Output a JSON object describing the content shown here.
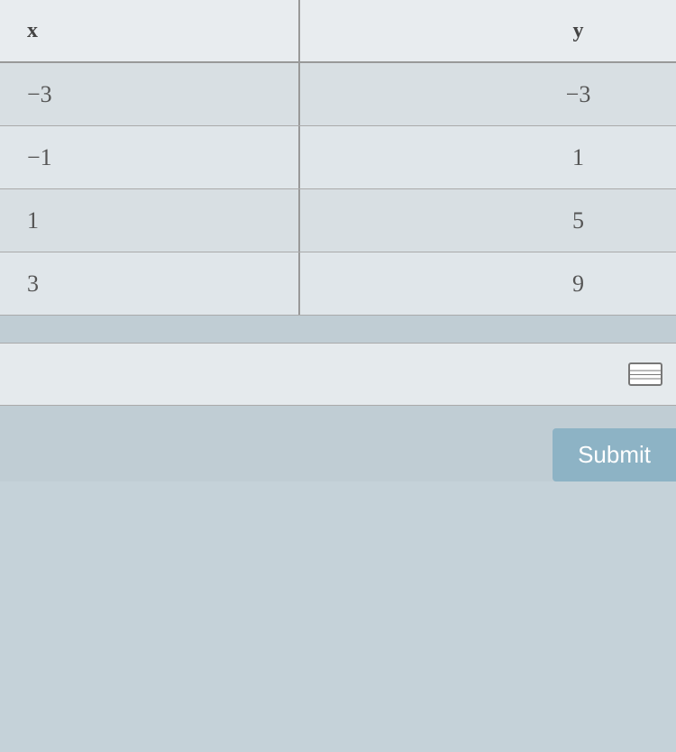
{
  "table": {
    "type": "table",
    "columns": [
      "x",
      "y"
    ],
    "header_fontsize": 24,
    "header_color": "#444444",
    "cell_fontsize": 26,
    "cell_color": "#555555",
    "border_color": "#999999",
    "row_bg_even": "#e0e6ea",
    "row_bg_odd": "#d8dfe3",
    "rows": [
      {
        "x": "−3",
        "y": "−3"
      },
      {
        "x": "−1",
        "y": "1"
      },
      {
        "x": "1",
        "y": "5"
      },
      {
        "x": "3",
        "y": "9"
      }
    ]
  },
  "submit": {
    "label": "Submit",
    "bg_color": "#8db3c5",
    "text_color": "#ffffff"
  },
  "page": {
    "background_color": "#c0cdd4"
  }
}
